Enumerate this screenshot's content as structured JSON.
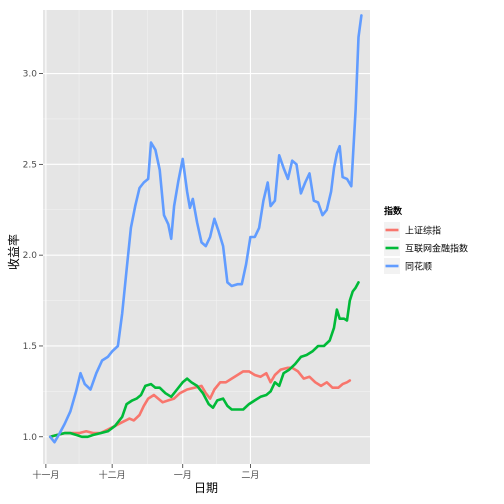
{
  "chart_data": {
    "type": "line",
    "title": "",
    "xlabel": "日期",
    "ylabel": "收益率",
    "x_tick_labels": [
      "十一月",
      "十二月",
      "一月",
      "二月"
    ],
    "y_ticks": [
      1.0,
      1.5,
      2.0,
      2.5,
      3.0
    ],
    "y_tick_labels": [
      "1.0",
      "1.5",
      "2.0",
      "2.5",
      "3.0"
    ],
    "ylim": [
      0.85,
      3.35
    ],
    "grid": "on",
    "legend": {
      "title": "指数",
      "placement": "right"
    },
    "colors": {
      "panel_background": "#e5e5e5",
      "grid_major": "#ffffff",
      "grid_minor": "#f2f2f2"
    },
    "series": [
      {
        "name": "上证综指",
        "color": "#f8766d",
        "points": [
          [
            0,
            1.0
          ],
          [
            5,
            1.01
          ],
          [
            10,
            1.02
          ],
          [
            15,
            1.02
          ],
          [
            20,
            1.02
          ],
          [
            25,
            1.03
          ],
          [
            30,
            1.02
          ],
          [
            35,
            1.02
          ],
          [
            40,
            1.04
          ],
          [
            45,
            1.06
          ],
          [
            50,
            1.08
          ],
          [
            55,
            1.1
          ],
          [
            58,
            1.09
          ],
          [
            62,
            1.12
          ],
          [
            65,
            1.17
          ],
          [
            68,
            1.21
          ],
          [
            72,
            1.23
          ],
          [
            75,
            1.21
          ],
          [
            78,
            1.19
          ],
          [
            82,
            1.2
          ],
          [
            86,
            1.21
          ],
          [
            90,
            1.24
          ],
          [
            95,
            1.26
          ],
          [
            100,
            1.27
          ],
          [
            105,
            1.28
          ],
          [
            108,
            1.24
          ],
          [
            111,
            1.21
          ],
          [
            114,
            1.26
          ],
          [
            118,
            1.3
          ],
          [
            122,
            1.3
          ],
          [
            126,
            1.32
          ],
          [
            130,
            1.34
          ],
          [
            134,
            1.36
          ],
          [
            138,
            1.36
          ],
          [
            142,
            1.34
          ],
          [
            146,
            1.33
          ],
          [
            150,
            1.35
          ],
          [
            153,
            1.3
          ],
          [
            156,
            1.34
          ],
          [
            160,
            1.37
          ],
          [
            165,
            1.38
          ],
          [
            168,
            1.38
          ],
          [
            172,
            1.36
          ],
          [
            176,
            1.32
          ],
          [
            180,
            1.33
          ],
          [
            184,
            1.3
          ],
          [
            188,
            1.28
          ],
          [
            192,
            1.3
          ],
          [
            196,
            1.27
          ],
          [
            200,
            1.27
          ],
          [
            203,
            1.29
          ],
          [
            206,
            1.3
          ],
          [
            208,
            1.31
          ]
        ]
      },
      {
        "name": "互联网金融指数",
        "color": "#00ba38",
        "points": [
          [
            0,
            1.0
          ],
          [
            5,
            1.01
          ],
          [
            10,
            1.02
          ],
          [
            14,
            1.02
          ],
          [
            18,
            1.01
          ],
          [
            22,
            1.0
          ],
          [
            26,
            1.0
          ],
          [
            30,
            1.01
          ],
          [
            35,
            1.02
          ],
          [
            40,
            1.03
          ],
          [
            45,
            1.06
          ],
          [
            50,
            1.11
          ],
          [
            53,
            1.18
          ],
          [
            57,
            1.2
          ],
          [
            60,
            1.21
          ],
          [
            63,
            1.23
          ],
          [
            66,
            1.28
          ],
          [
            70,
            1.29
          ],
          [
            73,
            1.27
          ],
          [
            76,
            1.27
          ],
          [
            80,
            1.24
          ],
          [
            84,
            1.22
          ],
          [
            88,
            1.26
          ],
          [
            92,
            1.3
          ],
          [
            95,
            1.32
          ],
          [
            98,
            1.3
          ],
          [
            102,
            1.28
          ],
          [
            106,
            1.24
          ],
          [
            110,
            1.18
          ],
          [
            113,
            1.16
          ],
          [
            116,
            1.2
          ],
          [
            120,
            1.21
          ],
          [
            123,
            1.17
          ],
          [
            126,
            1.15
          ],
          [
            130,
            1.15
          ],
          [
            134,
            1.15
          ],
          [
            138,
            1.18
          ],
          [
            142,
            1.2
          ],
          [
            146,
            1.22
          ],
          [
            150,
            1.23
          ],
          [
            153,
            1.25
          ],
          [
            156,
            1.3
          ],
          [
            159,
            1.28
          ],
          [
            162,
            1.35
          ],
          [
            166,
            1.37
          ],
          [
            170,
            1.4
          ],
          [
            174,
            1.44
          ],
          [
            178,
            1.45
          ],
          [
            182,
            1.47
          ],
          [
            186,
            1.5
          ],
          [
            190,
            1.5
          ],
          [
            194,
            1.53
          ],
          [
            197,
            1.6
          ],
          [
            199,
            1.7
          ],
          [
            201,
            1.65
          ],
          [
            204,
            1.65
          ],
          [
            206,
            1.64
          ],
          [
            208,
            1.75
          ],
          [
            210,
            1.8
          ],
          [
            212,
            1.82
          ],
          [
            214,
            1.85
          ]
        ]
      },
      {
        "name": "同花顺",
        "color": "#619cff",
        "points": [
          [
            0,
            1.0
          ],
          [
            3,
            0.97
          ],
          [
            6,
            1.01
          ],
          [
            10,
            1.07
          ],
          [
            14,
            1.14
          ],
          [
            18,
            1.25
          ],
          [
            21,
            1.35
          ],
          [
            24,
            1.29
          ],
          [
            28,
            1.26
          ],
          [
            32,
            1.35
          ],
          [
            36,
            1.42
          ],
          [
            40,
            1.44
          ],
          [
            43,
            1.47
          ],
          [
            47,
            1.5
          ],
          [
            50,
            1.68
          ],
          [
            53,
            1.92
          ],
          [
            56,
            2.15
          ],
          [
            59,
            2.27
          ],
          [
            62,
            2.37
          ],
          [
            65,
            2.4
          ],
          [
            68,
            2.42
          ],
          [
            70,
            2.62
          ],
          [
            73,
            2.58
          ],
          [
            76,
            2.47
          ],
          [
            79,
            2.22
          ],
          [
            82,
            2.17
          ],
          [
            84,
            2.09
          ],
          [
            86,
            2.27
          ],
          [
            89,
            2.41
          ],
          [
            92,
            2.53
          ],
          [
            95,
            2.35
          ],
          [
            97,
            2.26
          ],
          [
            99,
            2.31
          ],
          [
            102,
            2.18
          ],
          [
            105,
            2.07
          ],
          [
            108,
            2.05
          ],
          [
            111,
            2.1
          ],
          [
            114,
            2.2
          ],
          [
            117,
            2.13
          ],
          [
            120,
            2.05
          ],
          [
            123,
            1.85
          ],
          [
            126,
            1.83
          ],
          [
            130,
            1.84
          ],
          [
            133,
            1.84
          ],
          [
            136,
            1.95
          ],
          [
            139,
            2.1
          ],
          [
            142,
            2.1
          ],
          [
            145,
            2.15
          ],
          [
            148,
            2.3
          ],
          [
            151,
            2.4
          ],
          [
            153,
            2.27
          ],
          [
            156,
            2.3
          ],
          [
            159,
            2.55
          ],
          [
            162,
            2.48
          ],
          [
            165,
            2.42
          ],
          [
            168,
            2.52
          ],
          [
            171,
            2.5
          ],
          [
            174,
            2.34
          ],
          [
            177,
            2.4
          ],
          [
            180,
            2.45
          ],
          [
            183,
            2.3
          ],
          [
            186,
            2.29
          ],
          [
            189,
            2.22
          ],
          [
            192,
            2.25
          ],
          [
            195,
            2.35
          ],
          [
            197,
            2.48
          ],
          [
            199,
            2.56
          ],
          [
            201,
            2.6
          ],
          [
            203,
            2.43
          ],
          [
            206,
            2.42
          ],
          [
            209,
            2.38
          ],
          [
            212,
            2.8
          ],
          [
            214,
            3.2
          ],
          [
            216,
            3.32
          ]
        ]
      }
    ]
  }
}
